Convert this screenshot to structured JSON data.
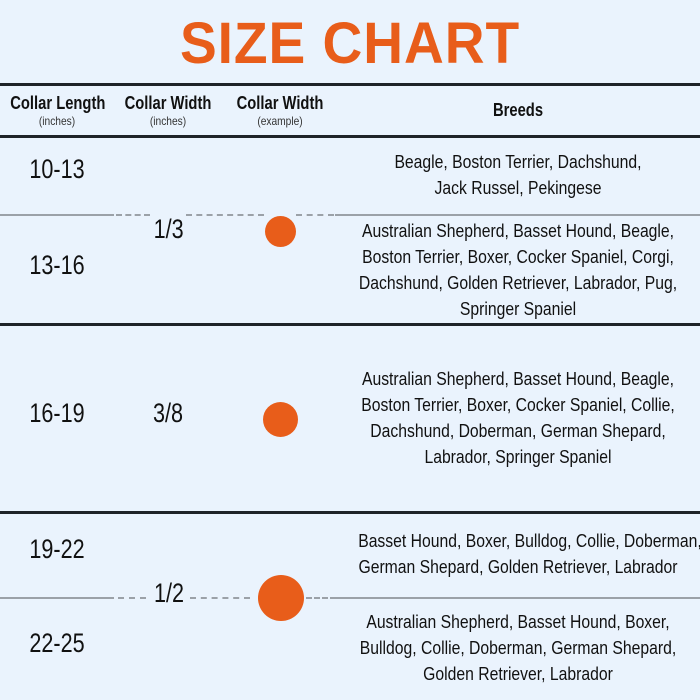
{
  "title": "SIZE CHART",
  "colors": {
    "accent": "#e85d1a",
    "background": "#eaf3fd"
  },
  "header": {
    "length": "Collar Length",
    "length_unit": "(inches)",
    "width": "Collar Width",
    "width_unit": "(inches)",
    "example": "Collar Width",
    "example_unit": "(example)",
    "breeds": "Breeds"
  },
  "rows": [
    {
      "length": "10-13",
      "breeds": [
        "Beagle, Boston Terrier, Dachshund,",
        "Jack Russel, Pekingese"
      ]
    },
    {
      "length": "13-16",
      "breeds": [
        "Australian Shepherd, Basset Hound, Beagle,",
        "Boston Terrier, Boxer, Cocker Spaniel, Corgi,",
        "Dachshund, Golden Retriever, Labrador, Pug,",
        "Springer Spaniel"
      ]
    },
    {
      "length": "16-19",
      "breeds": [
        "Australian Shepherd, Basset Hound, Beagle,",
        "Boston Terrier, Boxer, Cocker Spaniel, Collie,",
        "Dachshund, Doberman, German Shepard,",
        "Labrador, Springer Spaniel"
      ]
    },
    {
      "length": "19-22",
      "breeds": [
        "Basset Hound, Boxer, Bulldog, Collie, Doberman,",
        "German Shepard, Golden Retriever, Labrador"
      ]
    },
    {
      "length": "22-25",
      "breeds": [
        "Australian Shepherd, Basset Hound, Boxer,",
        "Bulldog, Collie, Doberman, German Shepard,",
        "Golden Retriever, Labrador"
      ]
    }
  ],
  "widths": [
    "1/3",
    "3/8",
    "1/2"
  ]
}
